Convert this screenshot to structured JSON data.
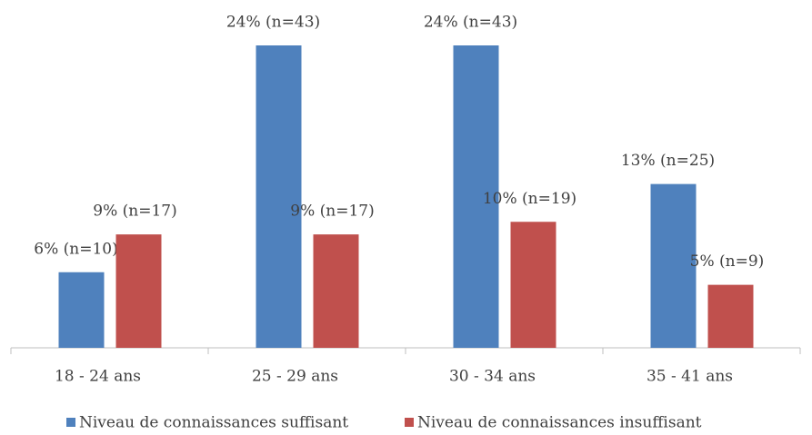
{
  "chart_data": {
    "type": "bar",
    "categories": [
      "18 - 24 ans",
      "25 - 29 ans",
      "30 - 34 ans",
      "35 - 41 ans"
    ],
    "series": [
      {
        "name": "Niveau de connaissances suffisant",
        "color": "#4f81bd",
        "values": [
          6,
          24,
          24,
          13
        ],
        "value_labels": [
          "6% (n=10)",
          "24% (n=43)",
          "24% (n=43)",
          "13% (n=25)"
        ]
      },
      {
        "name": "Niveau de connaissances insuffisant",
        "color": "#c0504d",
        "values": [
          9,
          9,
          10,
          5
        ],
        "value_labels": [
          "9% (n=17)",
          "9% (n=17)",
          "10% (n=19)",
          "5% (n=9)"
        ]
      }
    ],
    "legend": "bottom"
  }
}
